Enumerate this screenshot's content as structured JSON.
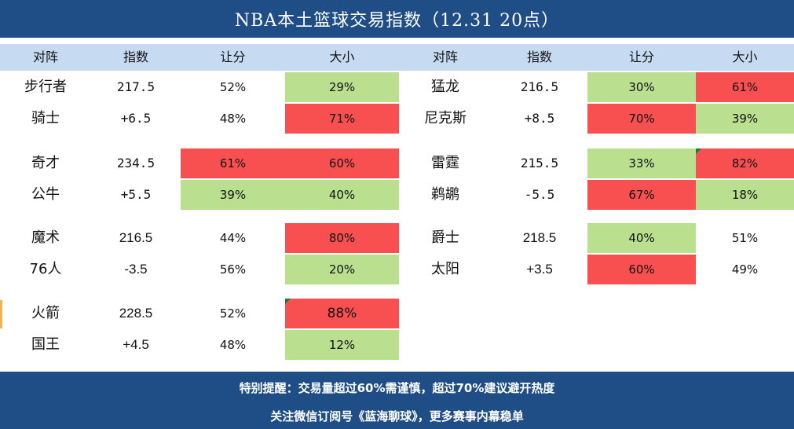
{
  "title": "NBA本土篮球交易指数（12.31 20点）",
  "headers": {
    "left": {
      "matchup": "对阵",
      "index": "指数",
      "spread": "让分",
      "total": "大小"
    },
    "right": {
      "matchup": "对阵",
      "index": "指数",
      "spread": "让分",
      "total": "大小"
    }
  },
  "colors": {
    "title_bg": "#1f4e86",
    "header_bg": "#c6dbf2",
    "hot": "#f85050",
    "cold": "#b9df8f"
  },
  "games": [
    {
      "team1": "步行者",
      "team2": "骑士",
      "total_line": "217.5",
      "spread_line": "+6.5",
      "spread1": "52%",
      "spread2": "48%",
      "total1": "29%",
      "total2": "71%"
    },
    {
      "team1": "猛龙",
      "team2": "尼克斯",
      "total_line": "216.5",
      "spread_line": "+8.5",
      "spread1": "30%",
      "spread2": "70%",
      "total1": "61%",
      "total2": "39%"
    },
    {
      "team1": "奇才",
      "team2": "公牛",
      "total_line": "234.5",
      "spread_line": "+5.5",
      "spread1": "61%",
      "spread2": "39%",
      "total1": "60%",
      "total2": "40%"
    },
    {
      "team1": "雷霆",
      "team2": "鹈鹕",
      "total_line": "215.5",
      "spread_line": "-5.5",
      "spread1": "33%",
      "spread2": "67%",
      "total1": "82%",
      "total2": "18%"
    },
    {
      "team1": "魔术",
      "team2": "76人",
      "total_line": "216.5",
      "spread_line": "-3.5",
      "spread1": "44%",
      "spread2": "56%",
      "total1": "80%",
      "total2": "20%"
    },
    {
      "team1": "爵士",
      "team2": "太阳",
      "total_line": "218.5",
      "spread_line": "+3.5",
      "spread1": "40%",
      "spread2": "60%",
      "total1": "51%",
      "total2": "49%"
    },
    {
      "team1": "火箭",
      "team2": "国王",
      "total_line": "228.5",
      "spread_line": "+4.5",
      "spread1": "52%",
      "spread2": "48%",
      "total1": "88%",
      "total2": "12%"
    }
  ],
  "footer": {
    "line1": "特别提醒：交易量超过60%需谨慎，超过70%建议避开热度",
    "line2": "关注微信订阅号《蓝海聊球》，更多赛事内幕稳单"
  }
}
